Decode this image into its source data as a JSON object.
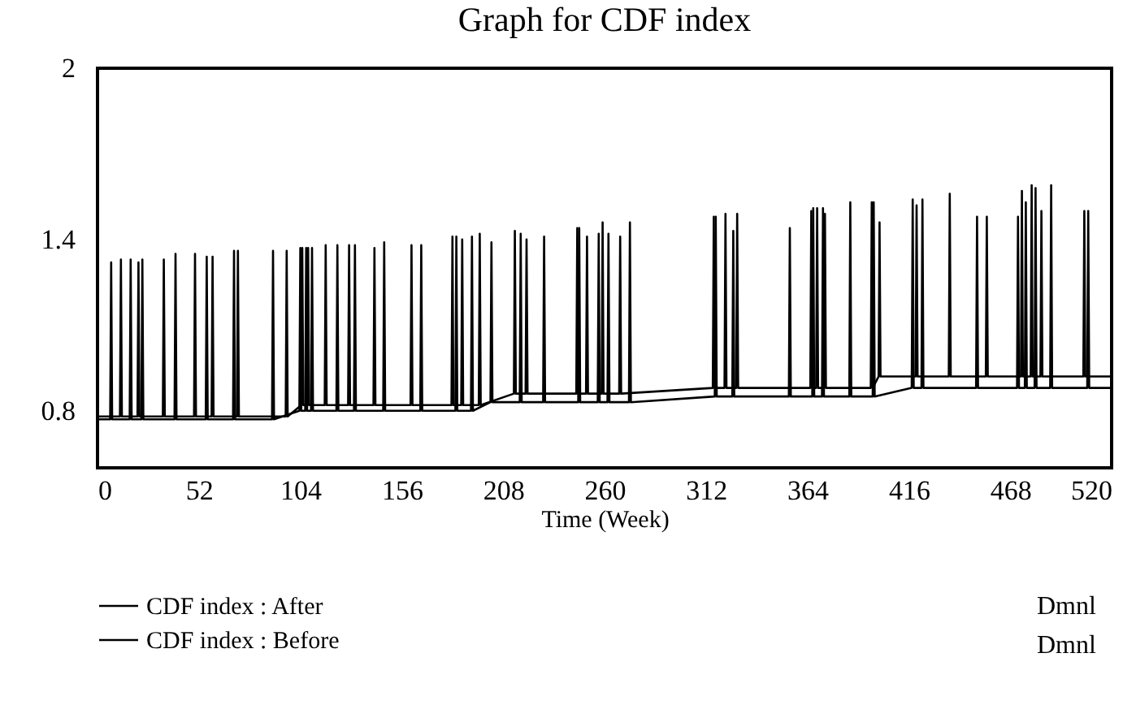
{
  "chart_data": {
    "type": "line",
    "title": "Graph for CDF index",
    "xlabel": "Time (Week)",
    "xlim": [
      0,
      520
    ],
    "xticks": [
      0,
      52,
      104,
      156,
      208,
      260,
      312,
      364,
      416,
      468,
      520
    ],
    "ylim": [
      0.6,
      2
    ],
    "yticks": [
      0.8,
      1.4,
      2
    ],
    "grid": false,
    "legend": "bottom",
    "line_style": "solid",
    "annotations": [
      "Dmnl",
      "Dmnl"
    ],
    "series": [
      {
        "name": "CDF index : After",
        "color": "#000000",
        "x": [
          0,
          6.5,
          7,
          7.5,
          16.5,
          17,
          17.5,
          22.5,
          23,
          23.5,
          39.5,
          40,
          40.5,
          55.5,
          56,
          56.5,
          69.5,
          70,
          70.5,
          89.5,
          90,
          90.5,
          103.5,
          104,
          104.5,
          106.5,
          107,
          107.5,
          109.5,
          110,
          110.5,
          122.5,
          123,
          123.5,
          131.5,
          132,
          132.5,
          146.5,
          147,
          147.5,
          165.5,
          166,
          166.5,
          183.5,
          184,
          184.5,
          191.5,
          192,
          192.5,
          201.5,
          202,
          202.5,
          216.5,
          217,
          217.5,
          228.5,
          229,
          229.5,
          246.5,
          247,
          247.5,
          256.5,
          257,
          257.5,
          261.5,
          262,
          262.5,
          272.5,
          273,
          273.5,
          316.5,
          317,
          317.5,
          325.5,
          326,
          326.5,
          354.5,
          355,
          355.5,
          366.5,
          367,
          367.5,
          371.5,
          372,
          372.5,
          385.5,
          386,
          386.5,
          397.5,
          398,
          398.5,
          417.5,
          418,
          418.5,
          422.5,
          423,
          423.5,
          450.5,
          451,
          451.5,
          471.5,
          472,
          472.5,
          475.5,
          476,
          476.5,
          480.5,
          481,
          481.5,
          488.5,
          489,
          489.5,
          507.5,
          508,
          508.5,
          520
        ],
        "values": [
          0.77,
          0.77,
          1.32,
          0.77,
          0.77,
          1.33,
          0.77,
          0.77,
          1.33,
          0.77,
          0.77,
          1.35,
          0.77,
          0.77,
          1.34,
          0.77,
          0.77,
          1.36,
          0.77,
          0.77,
          1.36,
          0.77,
          0.8,
          1.37,
          0.8,
          0.8,
          1.37,
          0.8,
          0.8,
          1.37,
          0.8,
          0.8,
          1.38,
          0.8,
          0.8,
          1.38,
          0.8,
          0.8,
          1.39,
          0.8,
          0.8,
          1.38,
          0.8,
          0.8,
          1.41,
          0.8,
          0.8,
          1.41,
          0.8,
          0.83,
          1.39,
          0.83,
          0.83,
          1.42,
          0.83,
          0.83,
          1.41,
          0.83,
          0.83,
          1.44,
          0.83,
          0.83,
          1.42,
          0.83,
          0.83,
          1.42,
          0.83,
          0.83,
          1.46,
          0.83,
          0.85,
          1.48,
          0.85,
          0.85,
          1.43,
          0.85,
          0.85,
          1.44,
          0.85,
          0.85,
          1.51,
          0.85,
          0.85,
          1.51,
          0.85,
          0.85,
          1.53,
          0.85,
          0.85,
          1.53,
          0.85,
          0.88,
          1.54,
          0.88,
          0.88,
          1.54,
          0.88,
          0.88,
          1.48,
          0.88,
          0.88,
          1.48,
          0.88,
          0.88,
          1.53,
          0.88,
          0.88,
          1.58,
          0.88,
          0.88,
          1.59,
          0.88,
          0.88,
          1.5,
          0.88,
          0.88
        ]
      },
      {
        "name": "CDF index : Before",
        "color": "#000000",
        "x": [
          0,
          11.5,
          12,
          12.5,
          20.5,
          21,
          21.5,
          33.5,
          34,
          34.5,
          49.5,
          50,
          50.5,
          58.5,
          59,
          59.5,
          71.5,
          72,
          72.5,
          96.5,
          97,
          97.5,
          104.5,
          105,
          105.5,
          107.5,
          108,
          108.5,
          116.5,
          117,
          117.5,
          128.5,
          129,
          129.5,
          141.5,
          142,
          142.5,
          160.5,
          161,
          161.5,
          181.5,
          182,
          182.5,
          186.5,
          187,
          187.5,
          195.5,
          196,
          196.5,
          213.5,
          214,
          214.5,
          219.5,
          220,
          220.5,
          245.5,
          246,
          246.5,
          250.5,
          251,
          251.5,
          258.5,
          259,
          259.5,
          267.5,
          268,
          268.5,
          315.5,
          316,
          316.5,
          321.5,
          322,
          322.5,
          327.5,
          328,
          328.5,
          365.5,
          366,
          366.5,
          368.5,
          369,
          369.5,
          372.5,
          373,
          373.5,
          396.5,
          397,
          397.5,
          400.5,
          401,
          401.5,
          419.5,
          420,
          420.5,
          436.5,
          437,
          437.5,
          455.5,
          456,
          456.5,
          473.5,
          474,
          474.5,
          478.5,
          479,
          479.5,
          483.5,
          484,
          484.5,
          505.5,
          506,
          506.5,
          520
        ],
        "values": [
          0.78,
          0.78,
          1.33,
          0.78,
          0.78,
          1.32,
          0.78,
          0.78,
          1.33,
          0.78,
          0.78,
          1.35,
          0.78,
          0.78,
          1.34,
          0.78,
          0.78,
          1.36,
          0.78,
          0.78,
          1.36,
          0.78,
          0.82,
          1.37,
          0.82,
          0.82,
          1.37,
          0.82,
          0.82,
          1.38,
          0.82,
          0.82,
          1.38,
          0.82,
          0.82,
          1.37,
          0.82,
          0.82,
          1.38,
          0.82,
          0.82,
          1.41,
          0.82,
          0.82,
          1.4,
          0.82,
          0.82,
          1.42,
          0.82,
          0.86,
          1.43,
          0.86,
          0.86,
          1.4,
          0.86,
          0.86,
          1.44,
          0.86,
          0.86,
          1.41,
          0.86,
          0.86,
          1.46,
          0.86,
          0.86,
          1.41,
          0.86,
          0.88,
          1.48,
          0.88,
          0.88,
          1.49,
          0.88,
          0.88,
          1.49,
          0.88,
          0.88,
          1.5,
          0.88,
          0.88,
          1.51,
          0.88,
          0.88,
          1.49,
          0.88,
          0.88,
          1.53,
          0.88,
          0.92,
          1.46,
          0.92,
          0.92,
          1.52,
          0.92,
          0.92,
          1.56,
          0.92,
          0.92,
          1.48,
          0.92,
          0.92,
          1.57,
          0.92,
          0.92,
          1.59,
          0.92,
          0.92,
          1.5,
          0.92,
          0.92,
          1.5,
          0.92,
          0.92
        ]
      }
    ]
  }
}
